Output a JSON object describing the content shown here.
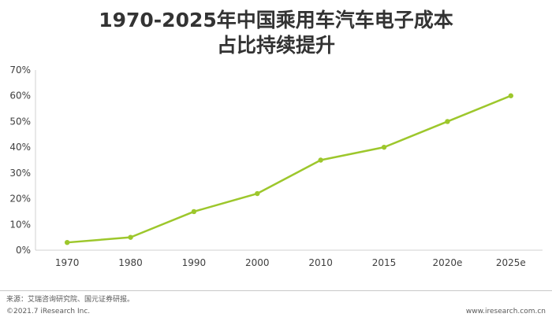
{
  "title_line1": "1970-2025年中国乘用车汽车电子成本",
  "title_line2": "占比持续提升",
  "chart_data": {
    "type": "line",
    "categories": [
      "1970",
      "1980",
      "1990",
      "2000",
      "2010",
      "2015",
      "2020e",
      "2025e"
    ],
    "series": [
      {
        "values": [
          3,
          5,
          15,
          22,
          35,
          40,
          50,
          60
        ]
      }
    ],
    "yticks": [
      "0%",
      "10%",
      "20%",
      "30%",
      "40%",
      "50%",
      "60%",
      "70%"
    ],
    "ylim": [
      0,
      70
    ],
    "grid": false,
    "line_color": "#9DC72C"
  },
  "footer": {
    "source": "来源：艾瑞咨询研究院、国元证券研报。",
    "copyright": "©2021.7 iResearch Inc.",
    "site": "www.iresearch.com.cn"
  }
}
